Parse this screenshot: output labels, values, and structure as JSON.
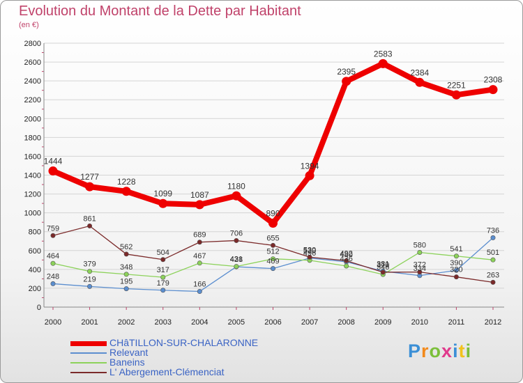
{
  "chart_data": {
    "type": "line",
    "title": "Evolution du Montant de la Dette par Habitant",
    "subtitle": "(en €)",
    "xlabel": "",
    "ylabel": "",
    "x": [
      2000,
      2001,
      2002,
      2003,
      2004,
      2005,
      2006,
      2007,
      2008,
      2009,
      2010,
      2011,
      2012
    ],
    "ylim": [
      0,
      2800
    ],
    "yticks": [
      0,
      200,
      400,
      600,
      800,
      1000,
      1200,
      1400,
      1600,
      1800,
      2000,
      2200,
      2400,
      2600,
      2800
    ],
    "grid": "horizontal",
    "legend_position": "bottom-left",
    "series": [
      {
        "name": "CHâTILLON-SUR-CHALARONNE",
        "color": "#ee0000",
        "values": [
          1444,
          1277,
          1228,
          1099,
          1087,
          1180,
          890,
          1394,
          2395,
          2583,
          2384,
          2251,
          2308
        ],
        "labels": [
          "1444",
          "1277",
          "1228",
          "1099",
          "1087",
          "1180",
          "890",
          "1394",
          "2395",
          "2583",
          "2384",
          "2251",
          "2308"
        ]
      },
      {
        "name": "Relevant",
        "color": "#5b8ecf",
        "values": [
          248,
          219,
          195,
          179,
          166,
          428,
          409,
          520,
          480,
          381,
          334,
          390,
          736
        ],
        "labels": [
          "248",
          "219",
          "195",
          "179",
          "166",
          "428",
          "409",
          "520",
          "480",
          "381",
          "334",
          "390",
          "736"
        ]
      },
      {
        "name": "Baneins",
        "color": "#8cd25a",
        "values": [
          464,
          379,
          348,
          317,
          467,
          431,
          512,
          496,
          436,
          346,
          580,
          541,
          501
        ],
        "labels": [
          "464",
          "379",
          "348",
          "317",
          "467",
          "431",
          "512",
          "496",
          "436",
          "346",
          "580",
          "541",
          "501"
        ]
      },
      {
        "name": "L' Abergement-Clémenciat",
        "color": "#7b2a2a",
        "values": [
          759,
          861,
          562,
          504,
          689,
          706,
          655,
          530,
          492,
          370,
          372,
          320,
          263
        ],
        "labels": [
          "759",
          "861",
          "562",
          "504",
          "689",
          "706",
          "655",
          "530",
          "492",
          "370",
          "372",
          "320",
          "263"
        ]
      }
    ]
  },
  "logo": {
    "text": "Proxiti",
    "letter_colors": [
      "#3b8fd6",
      "#f28a1c",
      "#7bbf3a",
      "#e03a8c",
      "#3b8fd6",
      "#f2c21c",
      "#7bbf3a"
    ]
  },
  "colors": {
    "title": "#c0426a",
    "grid": "#d4d4d4",
    "axis_ticks": "#c0426a"
  }
}
